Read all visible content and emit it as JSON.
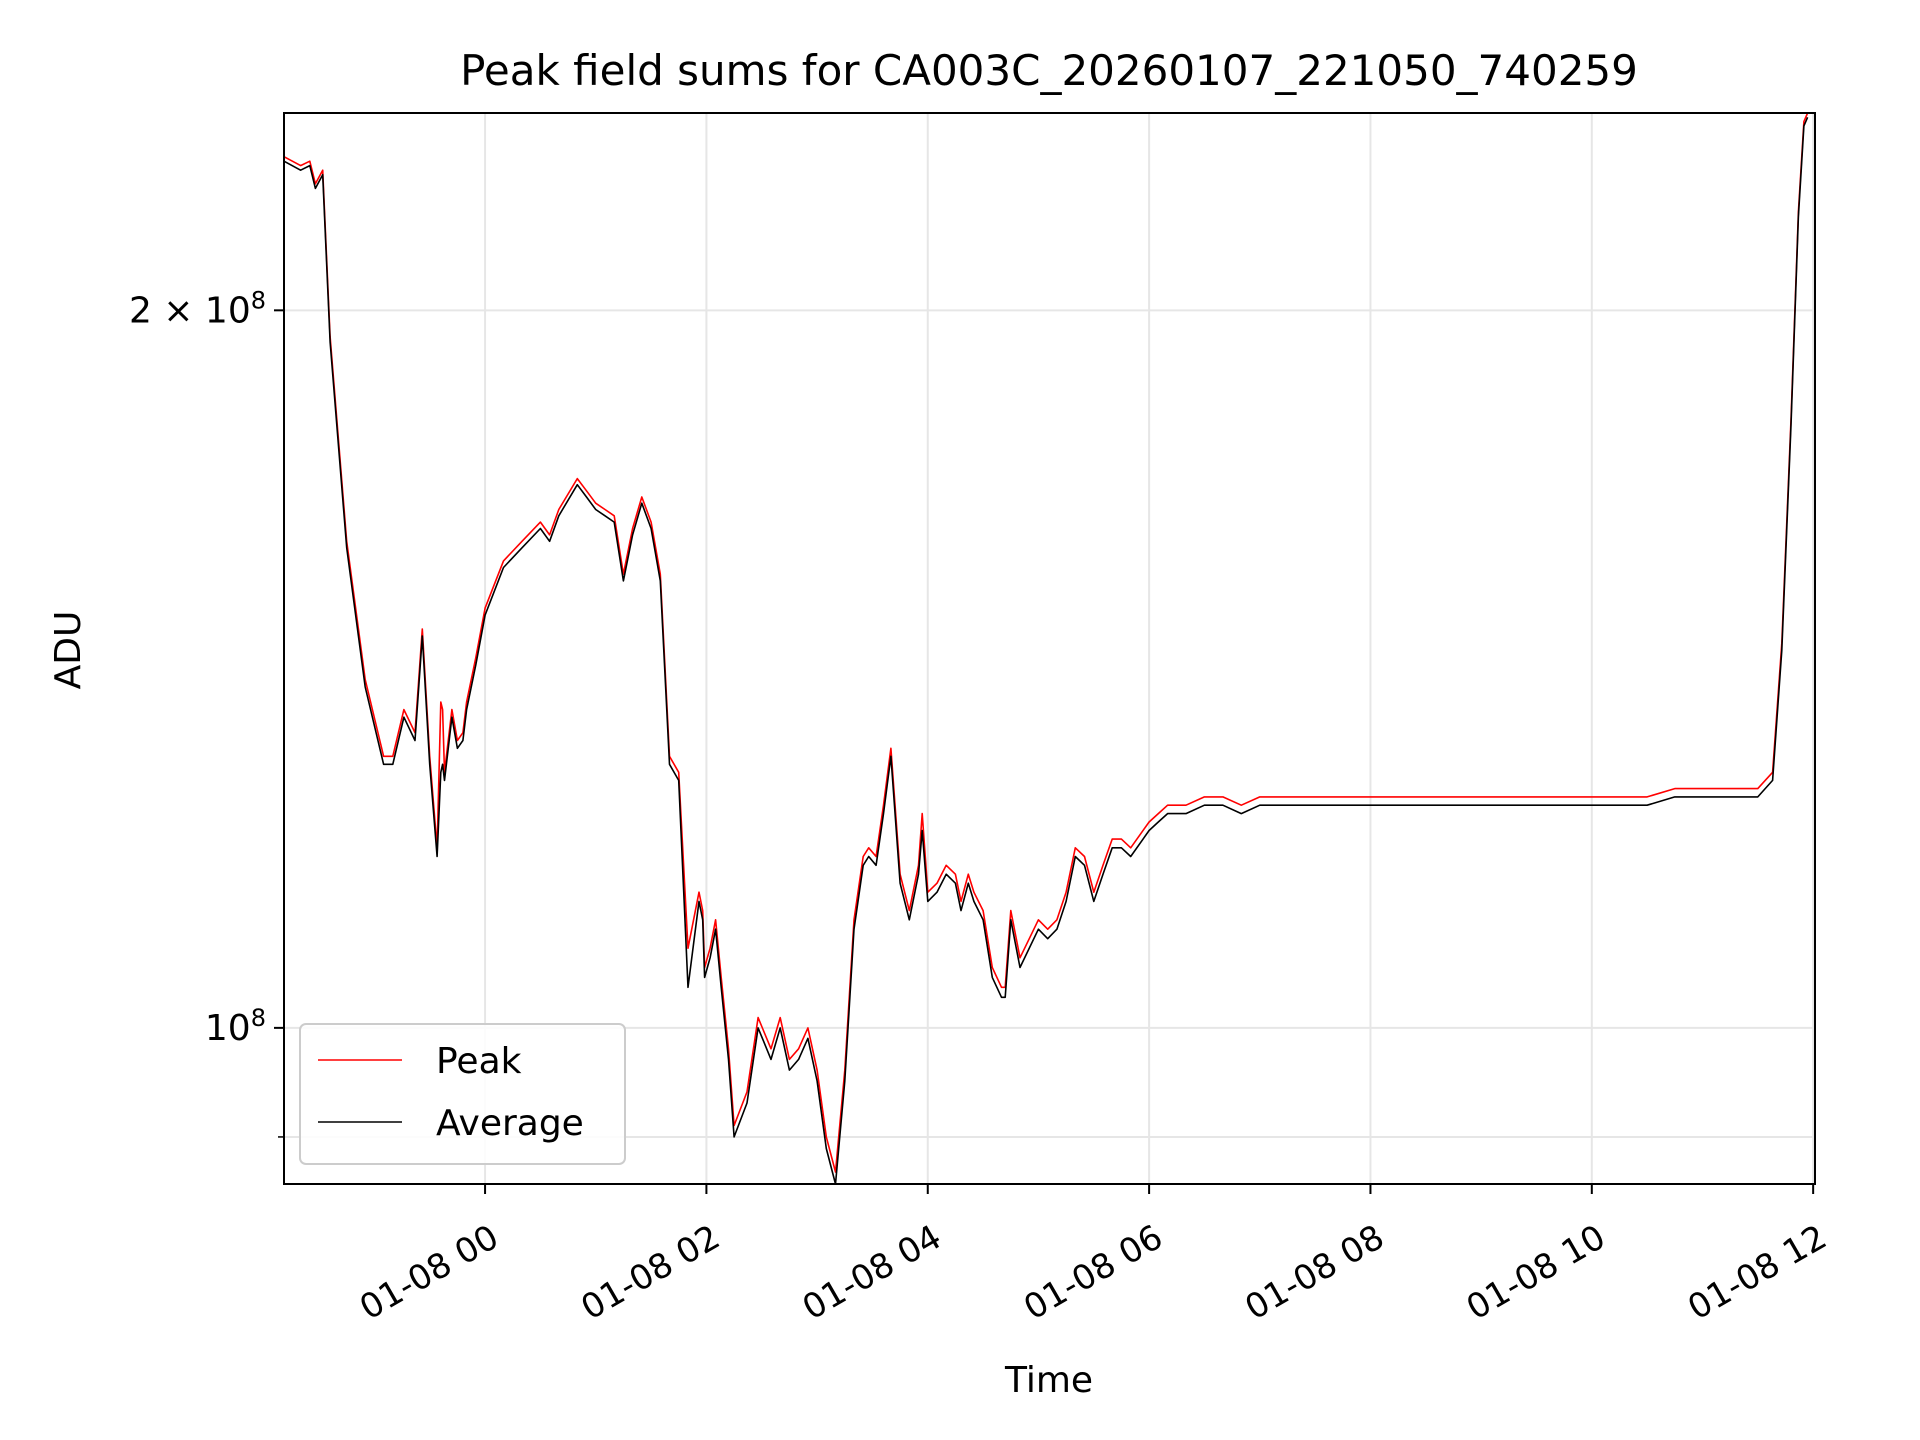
{
  "chart_data": {
    "type": "line",
    "title": "Peak field sums for CA003C_20260107_221050_740259",
    "xlabel": "Time",
    "ylabel": "ADU",
    "yscale": "log",
    "xlim": [
      "2026-01-07 22:11",
      "2026-01-08 12:01"
    ],
    "ylim": [
      86000000,
      242000000
    ],
    "grid": true,
    "legend_position": "lower-left",
    "x_ticks": [
      {
        "value": "2026-01-08 00:00",
        "label": "01-08 00"
      },
      {
        "value": "2026-01-08 02:00",
        "label": "01-08 02"
      },
      {
        "value": "2026-01-08 04:00",
        "label": "01-08 04"
      },
      {
        "value": "2026-01-08 06:00",
        "label": "01-08 06"
      },
      {
        "value": "2026-01-08 08:00",
        "label": "01-08 08"
      },
      {
        "value": "2026-01-08 10:00",
        "label": "01-08 10"
      },
      {
        "value": "2026-01-08 12:00",
        "label": "01-08 12"
      }
    ],
    "y_ticks": [
      {
        "value": 200000000,
        "base": "2 × 10",
        "exp": "8"
      },
      {
        "value": 100000000,
        "base": "10",
        "exp": "8"
      }
    ],
    "y_minor_ticks": [
      90000000
    ],
    "series": [
      {
        "name": "Peak",
        "color": "#ff0000",
        "x": [
          "2026-01-07 22:11",
          "2026-01-07 22:20",
          "2026-01-07 22:25",
          "2026-01-07 22:28",
          "2026-01-07 22:32",
          "2026-01-07 22:36",
          "2026-01-07 22:45",
          "2026-01-07 22:55",
          "2026-01-07 23:05",
          "2026-01-07 23:10",
          "2026-01-07 23:16",
          "2026-01-07 23:22",
          "2026-01-07 23:26",
          "2026-01-07 23:30",
          "2026-01-07 23:34",
          "2026-01-07 23:36",
          "2026-01-07 23:37",
          "2026-01-07 23:38",
          "2026-01-07 23:42",
          "2026-01-07 23:45",
          "2026-01-07 23:48",
          "2026-01-07 23:50",
          "2026-01-07 23:55",
          "2026-01-08 00:00",
          "2026-01-08 00:10",
          "2026-01-08 00:20",
          "2026-01-08 00:30",
          "2026-01-08 00:35",
          "2026-01-08 00:40",
          "2026-01-08 00:50",
          "2026-01-08 00:55",
          "2026-01-08 01:00",
          "2026-01-08 01:05",
          "2026-01-08 01:10",
          "2026-01-08 01:15",
          "2026-01-08 01:20",
          "2026-01-08 01:25",
          "2026-01-08 01:30",
          "2026-01-08 01:35",
          "2026-01-08 01:40",
          "2026-01-08 01:45",
          "2026-01-08 01:50",
          "2026-01-08 01:56",
          "2026-01-08 01:58",
          "2026-01-08 01:59",
          "2026-01-08 02:02",
          "2026-01-08 02:05",
          "2026-01-08 02:08",
          "2026-01-08 02:12",
          "2026-01-08 02:15",
          "2026-01-08 02:22",
          "2026-01-08 02:28",
          "2026-01-08 02:35",
          "2026-01-08 02:40",
          "2026-01-08 02:45",
          "2026-01-08 02:50",
          "2026-01-08 02:55",
          "2026-01-08 03:00",
          "2026-01-08 03:05",
          "2026-01-08 03:10",
          "2026-01-08 03:15",
          "2026-01-08 03:20",
          "2026-01-08 03:25",
          "2026-01-08 03:28",
          "2026-01-08 03:32",
          "2026-01-08 03:36",
          "2026-01-08 03:40",
          "2026-01-08 03:45",
          "2026-01-08 03:50",
          "2026-01-08 03:55",
          "2026-01-08 03:57",
          "2026-01-08 04:00",
          "2026-01-08 04:05",
          "2026-01-08 04:10",
          "2026-01-08 04:15",
          "2026-01-08 04:18",
          "2026-01-08 04:22",
          "2026-01-08 04:25",
          "2026-01-08 04:30",
          "2026-01-08 04:35",
          "2026-01-08 04:40",
          "2026-01-08 04:42",
          "2026-01-08 04:45",
          "2026-01-08 04:50",
          "2026-01-08 05:00",
          "2026-01-08 05:05",
          "2026-01-08 05:10",
          "2026-01-08 05:15",
          "2026-01-08 05:20",
          "2026-01-08 05:25",
          "2026-01-08 05:30",
          "2026-01-08 05:35",
          "2026-01-08 05:40",
          "2026-01-08 05:45",
          "2026-01-08 05:50",
          "2026-01-08 06:00",
          "2026-01-08 06:05",
          "2026-01-08 06:10",
          "2026-01-08 06:15",
          "2026-01-08 06:20",
          "2026-01-08 06:30",
          "2026-01-08 06:40",
          "2026-01-08 06:50",
          "2026-01-08 07:00",
          "2026-01-08 07:10",
          "2026-01-08 07:15",
          "2026-01-08 07:20",
          "2026-01-08 07:25",
          "2026-01-08 07:30",
          "2026-01-08 07:35",
          "2026-01-08 07:40",
          "2026-01-08 07:45",
          "2026-01-08 07:50",
          "2026-01-08 08:00",
          "2026-01-08 08:10",
          "2026-01-08 08:20",
          "2026-01-08 08:30",
          "2026-01-08 08:45",
          "2026-01-08 09:00",
          "2026-01-08 09:15",
          "2026-01-08 09:30",
          "2026-01-08 09:35",
          "2026-01-08 10:00",
          "2026-01-08 10:30",
          "2026-01-08 10:45",
          "2026-01-08 11:00",
          "2026-01-08 11:15",
          "2026-01-08 11:20",
          "2026-01-08 11:30",
          "2026-01-08 11:38",
          "2026-01-08 11:43",
          "2026-01-08 11:48",
          "2026-01-08 11:52",
          "2026-01-08 11:55",
          "2026-01-08 11:57"
        ],
        "y": [
          232000000,
          230000000,
          231000000,
          226000000,
          229000000,
          195000000,
          160000000,
          140000000,
          130000000,
          130000000,
          136000000,
          133000000,
          147000000,
          130000000,
          119000000,
          137000000,
          136000000,
          128000000,
          136000000,
          132000000,
          133000000,
          137000000,
          143000000,
          150000000,
          157000000,
          160000000,
          163000000,
          161000000,
          165000000,
          170000000,
          168000000,
          166000000,
          165000000,
          164000000,
          155000000,
          162000000,
          167000000,
          163000000,
          155000000,
          130000000,
          128000000,
          108000000,
          114000000,
          112000000,
          106000000,
          108000000,
          111000000,
          105000000,
          98000000,
          91000000,
          94000000,
          101000000,
          98000000,
          101000000,
          97000000,
          98000000,
          100000000,
          96000000,
          90000000,
          87000000,
          96000000,
          111000000,
          118000000,
          119000000,
          118000000,
          124000000,
          131000000,
          116000000,
          112000000,
          117000000,
          123000000,
          114000000,
          115000000,
          117000000,
          116000000,
          113000000,
          116000000,
          114000000,
          112000000,
          106000000,
          104000000,
          104000000,
          112000000,
          107000000,
          111000000,
          110000000,
          111000000,
          114000000,
          119000000,
          118000000,
          114000000,
          117000000,
          120000000,
          120000000,
          119000000,
          122000000,
          123000000,
          124000000,
          124000000,
          124000000,
          125000000,
          125000000,
          124000000,
          125000000,
          125000000,
          125000000,
          125000000,
          125000000,
          125000000,
          125000000,
          125000000,
          125000000,
          125000000,
          125000000,
          125000000,
          125000000,
          125000000,
          125000000,
          125000000,
          125000000,
          125000000,
          125000000,
          125000000,
          125000000,
          126000000,
          126000000,
          126000000,
          126000000,
          126000000,
          128000000,
          145000000,
          180000000,
          220000000,
          240000000,
          242000000
        ]
      },
      {
        "name": "Average",
        "color": "#000000",
        "x": [
          "2026-01-07 22:11",
          "2026-01-07 22:20",
          "2026-01-07 22:25",
          "2026-01-07 22:28",
          "2026-01-07 22:32",
          "2026-01-07 22:36",
          "2026-01-07 22:45",
          "2026-01-07 22:55",
          "2026-01-07 23:05",
          "2026-01-07 23:10",
          "2026-01-07 23:16",
          "2026-01-07 23:22",
          "2026-01-07 23:26",
          "2026-01-07 23:30",
          "2026-01-07 23:34",
          "2026-01-07 23:36",
          "2026-01-07 23:37",
          "2026-01-07 23:38",
          "2026-01-07 23:42",
          "2026-01-07 23:45",
          "2026-01-07 23:48",
          "2026-01-07 23:50",
          "2026-01-07 23:55",
          "2026-01-08 00:00",
          "2026-01-08 00:10",
          "2026-01-08 00:20",
          "2026-01-08 00:30",
          "2026-01-08 00:35",
          "2026-01-08 00:40",
          "2026-01-08 00:50",
          "2026-01-08 00:55",
          "2026-01-08 01:00",
          "2026-01-08 01:05",
          "2026-01-08 01:10",
          "2026-01-08 01:15",
          "2026-01-08 01:20",
          "2026-01-08 01:25",
          "2026-01-08 01:30",
          "2026-01-08 01:35",
          "2026-01-08 01:40",
          "2026-01-08 01:45",
          "2026-01-08 01:50",
          "2026-01-08 01:56",
          "2026-01-08 01:58",
          "2026-01-08 01:59",
          "2026-01-08 02:02",
          "2026-01-08 02:05",
          "2026-01-08 02:08",
          "2026-01-08 02:12",
          "2026-01-08 02:15",
          "2026-01-08 02:22",
          "2026-01-08 02:28",
          "2026-01-08 02:35",
          "2026-01-08 02:40",
          "2026-01-08 02:45",
          "2026-01-08 02:50",
          "2026-01-08 02:55",
          "2026-01-08 03:00",
          "2026-01-08 03:05",
          "2026-01-08 03:10",
          "2026-01-08 03:15",
          "2026-01-08 03:20",
          "2026-01-08 03:25",
          "2026-01-08 03:28",
          "2026-01-08 03:32",
          "2026-01-08 03:36",
          "2026-01-08 03:40",
          "2026-01-08 03:45",
          "2026-01-08 03:50",
          "2026-01-08 03:55",
          "2026-01-08 03:57",
          "2026-01-08 04:00",
          "2026-01-08 04:05",
          "2026-01-08 04:10",
          "2026-01-08 04:15",
          "2026-01-08 04:18",
          "2026-01-08 04:22",
          "2026-01-08 04:25",
          "2026-01-08 04:30",
          "2026-01-08 04:35",
          "2026-01-08 04:40",
          "2026-01-08 04:42",
          "2026-01-08 04:45",
          "2026-01-08 04:50",
          "2026-01-08 05:00",
          "2026-01-08 05:05",
          "2026-01-08 05:10",
          "2026-01-08 05:15",
          "2026-01-08 05:20",
          "2026-01-08 05:25",
          "2026-01-08 05:30",
          "2026-01-08 05:35",
          "2026-01-08 05:40",
          "2026-01-08 05:45",
          "2026-01-08 05:50",
          "2026-01-08 06:00",
          "2026-01-08 06:05",
          "2026-01-08 06:10",
          "2026-01-08 06:15",
          "2026-01-08 06:20",
          "2026-01-08 06:30",
          "2026-01-08 06:40",
          "2026-01-08 06:50",
          "2026-01-08 07:00",
          "2026-01-08 07:10",
          "2026-01-08 07:15",
          "2026-01-08 07:20",
          "2026-01-08 07:25",
          "2026-01-08 07:30",
          "2026-01-08 07:35",
          "2026-01-08 07:40",
          "2026-01-08 07:45",
          "2026-01-08 07:50",
          "2026-01-08 08:00",
          "2026-01-08 08:10",
          "2026-01-08 08:20",
          "2026-01-08 08:30",
          "2026-01-08 08:45",
          "2026-01-08 09:00",
          "2026-01-08 09:15",
          "2026-01-08 09:30",
          "2026-01-08 09:35",
          "2026-01-08 10:00",
          "2026-01-08 10:30",
          "2026-01-08 10:45",
          "2026-01-08 11:00",
          "2026-01-08 11:15",
          "2026-01-08 11:20",
          "2026-01-08 11:30",
          "2026-01-08 11:38",
          "2026-01-08 11:43",
          "2026-01-08 11:48",
          "2026-01-08 11:52",
          "2026-01-08 11:55",
          "2026-01-08 11:57"
        ],
        "y": [
          231000000,
          229000000,
          230000000,
          225000000,
          228000000,
          194000000,
          159000000,
          139000000,
          129000000,
          129000000,
          135000000,
          132000000,
          146000000,
          129000000,
          118000000,
          128000000,
          129000000,
          127000000,
          135000000,
          131000000,
          132000000,
          136000000,
          142000000,
          149000000,
          156000000,
          159000000,
          162000000,
          160000000,
          164000000,
          169000000,
          167000000,
          165000000,
          164000000,
          163000000,
          154000000,
          161000000,
          166000000,
          162000000,
          154000000,
          129000000,
          127000000,
          104000000,
          113000000,
          111000000,
          105000000,
          107000000,
          110000000,
          104000000,
          97000000,
          90000000,
          93000000,
          100000000,
          97000000,
          100000000,
          96000000,
          97000000,
          99000000,
          95000000,
          89000000,
          86000000,
          95000000,
          110000000,
          117000000,
          118000000,
          117000000,
          123000000,
          130000000,
          115000000,
          111000000,
          116000000,
          121000000,
          113000000,
          114000000,
          116000000,
          115000000,
          112000000,
          115000000,
          113000000,
          111000000,
          105000000,
          103000000,
          103000000,
          111000000,
          106000000,
          110000000,
          109000000,
          110000000,
          113000000,
          118000000,
          117000000,
          113000000,
          116000000,
          119000000,
          119000000,
          118000000,
          121000000,
          122000000,
          123000000,
          123000000,
          123000000,
          124000000,
          124000000,
          123000000,
          124000000,
          124000000,
          124000000,
          124000000,
          124000000,
          124000000,
          124000000,
          124000000,
          124000000,
          124000000,
          124000000,
          124000000,
          124000000,
          124000000,
          124000000,
          124000000,
          124000000,
          124000000,
          124000000,
          124000000,
          124000000,
          125000000,
          125000000,
          125000000,
          125000000,
          125000000,
          127000000,
          144000000,
          179000000,
          219000000,
          239000000,
          241000000
        ]
      }
    ]
  }
}
